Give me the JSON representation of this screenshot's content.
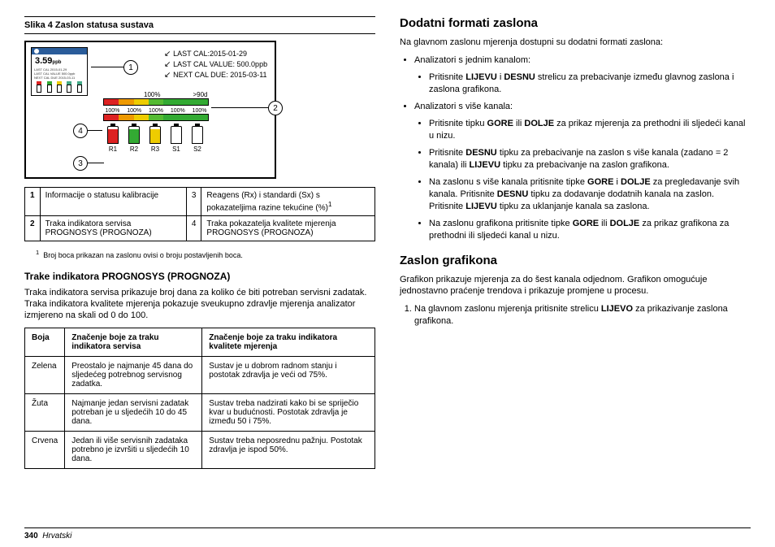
{
  "figTitle": "Slika 4  Zaslon statusa sustava",
  "screenValue": "3.59",
  "screenUnit": "ppb",
  "calInfo": {
    "l1": "LAST CAL:2015-01-29",
    "l2": "LAST CAL VALUE: 500.0ppb",
    "l3": "NEXT CAL DUE: 2015-03-11"
  },
  "topBar": {
    "pct": "100%",
    "days": ">90d",
    "colors": [
      "#d22",
      "#e90",
      "#ec0",
      "#5b3",
      "#3a3"
    ]
  },
  "botBar": {
    "pcts": [
      "100%",
      "100%",
      "100%",
      "100%",
      "100%"
    ],
    "colors": [
      "#d22",
      "#e90",
      "#ec0",
      "#5b3",
      "#3a3"
    ]
  },
  "bottles": [
    {
      "lbl": "R1",
      "fill": "#d22",
      "h": 85
    },
    {
      "lbl": "R2",
      "fill": "#3a3",
      "h": 85
    },
    {
      "lbl": "R3",
      "fill": "#ec0",
      "h": 85
    },
    {
      "lbl": "S1",
      "fill": "#fff",
      "h": 85
    },
    {
      "lbl": "S2",
      "fill": "#fff",
      "h": 85
    }
  ],
  "legend": [
    {
      "n": "1",
      "t": "Informacije o statusu kalibracije"
    },
    {
      "n": "3",
      "t": "Reagens (Rx) i standardi (Sx) s pokazateljima razine tekućine (%)"
    },
    {
      "n": "2",
      "t": "Traka indikatora servisa PROGNOSYS (PROGNOZA)"
    },
    {
      "n": "4",
      "t": "Traka pokazatelja kvalitete mjerenja PROGNOSYS (PROGNOZA)"
    }
  ],
  "footnoteMark": "1",
  "footnote": "Broj boca prikazan na zaslonu ovisi o broju postavljenih boca.",
  "h3a": "Trake indikatora PROGNOSYS (PROGNOZA)",
  "p1": "Traka indikatora servisa prikazuje broj dana za koliko će biti potreban servisni zadatak. Traka indikatora kvalitete mjerenja pokazuje sveukupno zdravlje mjerenja analizator izmjereno na skali od 0 do 100.",
  "colorTable": {
    "headers": [
      "Boja",
      "Značenje boje za traku indikatora servisa",
      "Značenje boje za traku indikatora kvalitete mjerenja"
    ],
    "rows": [
      [
        "Zelena",
        "Preostalo je najmanje 45 dana do sljedećeg potrebnog servisnog zadatka.",
        "Sustav je u dobrom radnom stanju i postotak zdravlja je veći od 75%."
      ],
      [
        "Žuta",
        "Najmanje jedan servisni zadatak potreban je u sljedećih 10 do 45 dana.",
        "Sustav treba nadzirati kako bi se spriječio kvar u budućnosti. Postotak zdravlja je između 50 i 75%."
      ],
      [
        "Crvena",
        "Jedan ili više servisnih zadataka potrebno je izvršiti u sljedećih 10 dana.",
        "Sustav treba neposrednu pažnju. Postotak zdravlja je ispod 50%."
      ]
    ]
  },
  "h2a": "Dodatni formati zaslona",
  "p2": "Na glavnom zaslonu mjerenja dostupni su dodatni formati zaslona:",
  "li1": "Analizatori s jednim kanalom:",
  "li1a": [
    "Pritisnite <b>LIJEVU</b> i <b>DESNU</b> strelicu za prebacivanje između glavnog zaslona i zaslona grafikona."
  ],
  "li2": "Analizatori s više kanala:",
  "li2a": [
    "Pritisnite tipku <b>GORE</b> ili <b>DOLJE</b> za prikaz mjerenja za prethodni ili sljedeći kanal u nizu.",
    "Pritisnite <b>DESNU</b> tipku za prebacivanje na zaslon s više kanala (zadano = 2 kanala) ili <b>LIJEVU</b> tipku za prebacivanje na zaslon grafikona.",
    "Na zaslonu s više kanala pritisnite tipke <b>GORE</b> i <b>DOLJE</b> za pregledavanje svih kanala. Pritisnite <b>DESNU</b> tipku za dodavanje dodatnih kanala na zaslon. Pritisnite <b>LIJEVU</b> tipku za uklanjanje kanala sa zaslona.",
    "Na zaslonu grafikona pritisnite tipke <b>GORE</b> ili <b>DOLJE</b> za prikaz grafikona za prethodni ili sljedeći kanal u nizu."
  ],
  "h2b": "Zaslon grafikona",
  "p3": "Grafikon prikazuje mjerenja za do šest kanala odjednom. Grafikon omogućuje jednostavno praćenje trendova i prikazuje promjene u procesu.",
  "ol1": "Na glavnom zaslonu mjerenja pritisnite strelicu <b>LIJEVO</b> za prikazivanje zaslona grafikona.",
  "pageNum": "340",
  "pageLang": "Hrvatski"
}
